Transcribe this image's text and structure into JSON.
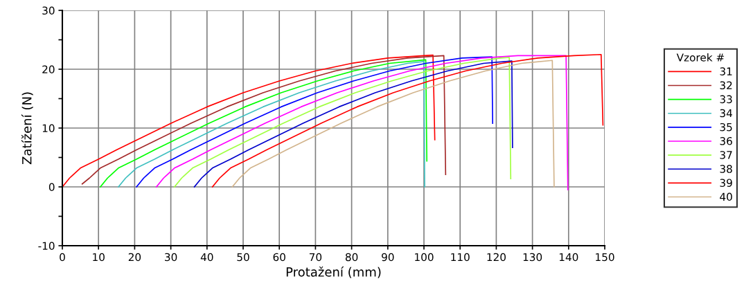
{
  "chart_data": {
    "type": "line",
    "xlabel": "Protažení (mm)",
    "ylabel": "Zatížení (N)",
    "legend_title": "Vzorek #",
    "legend": "right",
    "grid": true,
    "marker": "none",
    "line_style": "solid",
    "xlim": [
      0,
      150
    ],
    "xticks": [
      0,
      10,
      20,
      30,
      40,
      50,
      60,
      70,
      80,
      90,
      100,
      110,
      120,
      130,
      140,
      150
    ],
    "ylim": [
      -10,
      30
    ],
    "yticks": [
      -10,
      {
        "value": -5,
        "label": null
      },
      0,
      {
        "value": 5,
        "label": null
      },
      10,
      {
        "value": 15,
        "label": null
      },
      20,
      {
        "value": 25,
        "label": null
      },
      30
    ],
    "series": [
      {
        "name": "31",
        "color": "#ff0000",
        "x": [
          0,
          2,
          5,
          10,
          15,
          20,
          30,
          40,
          50,
          60,
          70,
          80,
          90,
          100,
          102.5,
          103
        ],
        "values": [
          0,
          1.5,
          3.2,
          4.7,
          6.3,
          7.8,
          10.8,
          13.6,
          16.0,
          18.0,
          19.7,
          21.0,
          21.9,
          22.3,
          22.4,
          8.0
        ]
      },
      {
        "name": "32",
        "color": "#a52a2a",
        "x": [
          5.5,
          7.5,
          10.5,
          15.5,
          20.5,
          25.5,
          35.5,
          45.5,
          55.5,
          65.5,
          75.5,
          85.5,
          95.5,
          105.5,
          106
        ],
        "values": [
          0.5,
          1.5,
          3.2,
          4.7,
          6.3,
          7.8,
          10.8,
          13.6,
          16.0,
          18.0,
          19.7,
          21.0,
          21.9,
          22.3,
          2.1
        ]
      },
      {
        "name": "33",
        "color": "#00ff00",
        "x": [
          10.5,
          12.5,
          15.5,
          20.5,
          25.5,
          30.5,
          40.5,
          50.5,
          60.5,
          70.5,
          80.5,
          90.5,
          100.5,
          100.8
        ],
        "values": [
          0,
          1.5,
          3.2,
          4.7,
          6.3,
          7.8,
          10.8,
          13.6,
          16.0,
          18.0,
          19.7,
          21.0,
          21.6,
          4.4
        ]
      },
      {
        "name": "34",
        "color": "#40c0c0",
        "x": [
          15.5,
          17.5,
          20.5,
          25.5,
          30.5,
          35.5,
          45.5,
          55.5,
          65.5,
          75.5,
          85.5,
          95.5,
          100,
          100.2
        ],
        "values": [
          0,
          1.5,
          3.2,
          4.7,
          6.3,
          7.8,
          10.8,
          13.6,
          16.0,
          18.0,
          19.7,
          21.0,
          21.3,
          0
        ]
      },
      {
        "name": "35",
        "color": "#0000ff",
        "x": [
          20.5,
          22.5,
          25.5,
          30.5,
          35.5,
          40.5,
          50.5,
          60.5,
          70.5,
          80.5,
          90.5,
          100.5,
          110.5,
          118.8,
          119
        ],
        "values": [
          0,
          1.5,
          3.2,
          4.7,
          6.3,
          7.8,
          10.8,
          13.6,
          16.0,
          18.0,
          19.7,
          21.0,
          21.9,
          22.1,
          10.8
        ]
      },
      {
        "name": "36",
        "color": "#ff00ff",
        "x": [
          26,
          28,
          31,
          36,
          41,
          46,
          56,
          66,
          76,
          86,
          96,
          106,
          116,
          126,
          139.3,
          139.8
        ],
        "values": [
          0,
          1.5,
          3.2,
          4.7,
          6.3,
          7.8,
          10.8,
          13.6,
          16.0,
          18.0,
          19.7,
          21.0,
          21.9,
          22.3,
          22.3,
          -0.5
        ]
      },
      {
        "name": "37",
        "color": "#a0ff40",
        "x": [
          31,
          33,
          36,
          41,
          46,
          51,
          61,
          71,
          81,
          91,
          101,
          111,
          121,
          123.6,
          124
        ],
        "values": [
          0,
          1.5,
          3.2,
          4.7,
          6.3,
          7.8,
          10.8,
          13.6,
          16.0,
          18.0,
          19.7,
          21.0,
          21.9,
          22.0,
          1.4
        ]
      },
      {
        "name": "38",
        "color": "#0000cc",
        "x": [
          36.5,
          38.5,
          41.5,
          46.5,
          51.5,
          56.5,
          66.5,
          76.5,
          86.5,
          96.5,
          106.5,
          116.5,
          124.3,
          124.5
        ],
        "values": [
          0,
          1.5,
          3.2,
          4.7,
          6.3,
          7.8,
          10.8,
          13.6,
          16.0,
          18.0,
          19.7,
          21.0,
          21.4,
          6.7
        ]
      },
      {
        "name": "39",
        "color": "#ff0000",
        "x": [
          41.5,
          43.5,
          46.5,
          51.5,
          56.5,
          61.5,
          71.5,
          81.5,
          91.5,
          101.5,
          111.5,
          121.5,
          131.5,
          141.5,
          149,
          149.5
        ],
        "values": [
          0,
          1.5,
          3.2,
          4.7,
          6.3,
          7.8,
          10.8,
          13.6,
          16.0,
          18.0,
          19.7,
          21.0,
          21.9,
          22.3,
          22.5,
          10.5
        ]
      },
      {
        "name": "40",
        "color": "#d2b48c",
        "x": [
          47,
          49,
          52,
          57,
          62,
          67,
          77,
          87,
          97,
          107,
          117,
          127,
          135.5,
          136
        ],
        "values": [
          0,
          1.5,
          3.2,
          4.7,
          6.3,
          7.8,
          10.8,
          13.6,
          16.0,
          18.0,
          19.7,
          21.0,
          21.5,
          0
        ]
      }
    ]
  }
}
